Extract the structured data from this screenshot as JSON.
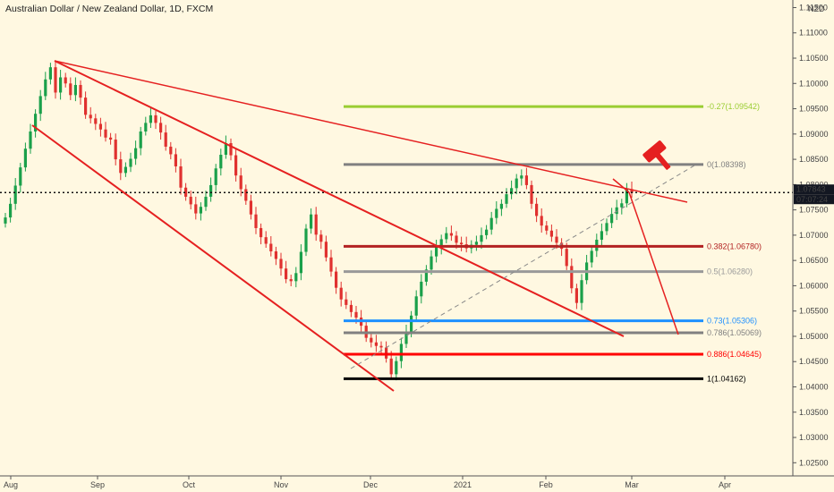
{
  "header": {
    "title": "Australian Dollar / New Zealand Dollar, 1D, FXCM"
  },
  "chart_data": {
    "type": "candlestick",
    "currency_badge": "NZD",
    "price_axis": [
      "1.11500",
      "1.11000",
      "1.10500",
      "1.10000",
      "1.09500",
      "1.09000",
      "1.08500",
      "1.08000",
      "1.07500",
      "1.07000",
      "1.06500",
      "1.06000",
      "1.05500",
      "1.05000",
      "1.04500",
      "1.04000",
      "1.03500",
      "1.03000",
      "1.02500"
    ],
    "time_axis": [
      "Aug",
      "Sep",
      "Oct",
      "Nov",
      "Dec",
      "2021",
      "Feb",
      "Mar",
      "Apr"
    ],
    "ylim": [
      1.0224,
      1.1165
    ],
    "current_price": {
      "value": "1.07843",
      "countdown": "07:07:24",
      "color": "#131722",
      "level": 1.07843
    },
    "fib_levels": [
      {
        "label": "-0.27(1.09542)",
        "value": 1.09542,
        "color": "#9acd32"
      },
      {
        "label": "0(1.08398)",
        "value": 1.08398,
        "color": "#808080"
      },
      {
        "label": "0.382(1.06780)",
        "value": 1.0678,
        "color": "#b22222"
      },
      {
        "label": "0.5(1.06280)",
        "value": 1.0628,
        "color": "#999999"
      },
      {
        "label": "0.73(1.05306)",
        "value": 1.05306,
        "color": "#1e90ff"
      },
      {
        "label": "0.786(1.05069)",
        "value": 1.05069,
        "color": "#808080"
      },
      {
        "label": "0.886(1.04645)",
        "value": 1.04645,
        "color": "#ff0000"
      },
      {
        "label": "1(1.04162)",
        "value": 1.04162,
        "color": "#000000"
      }
    ],
    "colors": {
      "up": "#1aa04a",
      "down": "#e0312f",
      "trendline": "#e52020",
      "background": "#fff8e1"
    },
    "closes": [
      1.0735,
      1.0762,
      1.0798,
      1.0834,
      1.0871,
      1.0905,
      1.094,
      1.0975,
      1.1008,
      1.1032,
      1.0982,
      1.1012,
      1.1,
      1.0977,
      1.0997,
      1.0972,
      1.0938,
      1.0931,
      1.092,
      1.0909,
      1.0893,
      1.0889,
      1.085,
      1.0823,
      1.0835,
      1.0851,
      1.0872,
      1.0905,
      1.0922,
      1.0937,
      1.0922,
      1.0903,
      1.0875,
      1.086,
      1.0836,
      1.0794,
      1.0776,
      1.0761,
      1.0743,
      1.0756,
      1.0776,
      1.0799,
      1.0832,
      1.0859,
      1.0882,
      1.0858,
      1.0818,
      1.0791,
      1.0768,
      1.0741,
      1.0714,
      1.0696,
      1.0683,
      1.0668,
      1.0653,
      1.0634,
      1.0613,
      1.0609,
      1.0625,
      1.0667,
      1.0713,
      1.0741,
      1.0701,
      1.0687,
      1.0656,
      1.0628,
      1.0596,
      1.0573,
      1.0562,
      1.0548,
      1.0537,
      1.0521,
      1.0497,
      1.0488,
      1.0481,
      1.0478,
      1.0456,
      1.0425,
      1.0451,
      1.0485,
      1.0508,
      1.0541,
      1.0579,
      1.0608,
      1.0632,
      1.0658,
      1.0676,
      1.0692,
      1.0704,
      1.0699,
      1.0685,
      1.0682,
      1.0674,
      1.0681,
      1.0687,
      1.07,
      1.0711,
      1.0734,
      1.0752,
      1.0762,
      1.0781,
      1.0793,
      1.0812,
      1.0818,
      1.0799,
      1.0762,
      1.0738,
      1.0719,
      1.0709,
      1.0697,
      1.0685,
      1.0673,
      1.0639,
      1.0595,
      1.0566,
      1.0611,
      1.0646,
      1.0669,
      1.0691,
      1.0708,
      1.0724,
      1.0742,
      1.0755,
      1.0763,
      1.0791,
      1.0784
    ]
  }
}
